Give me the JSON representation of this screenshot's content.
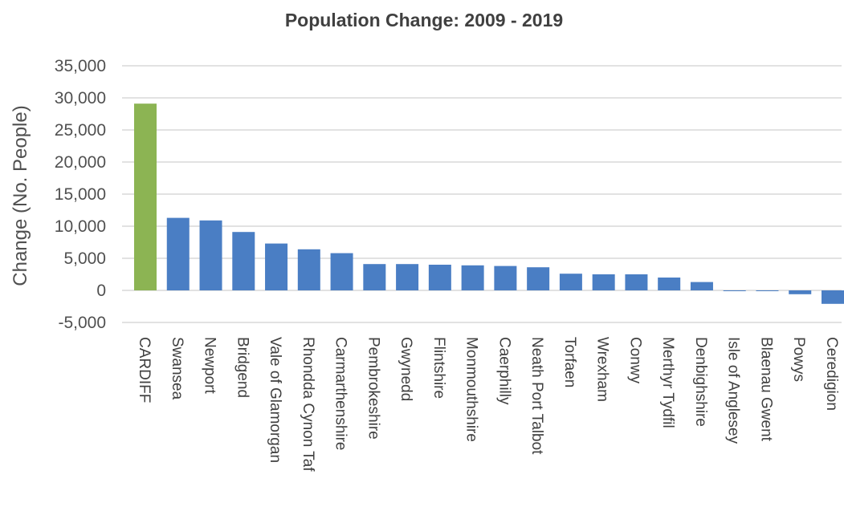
{
  "chart_data": {
    "type": "bar",
    "title": "Population Change: 2009 - 2019",
    "ylabel": "Change (No. People)",
    "xlabel": "",
    "ylim": [
      -5000,
      35000
    ],
    "yticks": [
      -5000,
      0,
      5000,
      10000,
      15000,
      20000,
      25000,
      30000,
      35000
    ],
    "ytick_labels": [
      "-5,000",
      "0",
      "5,000",
      "10,000",
      "15,000",
      "20,000",
      "25,000",
      "30,000",
      "35,000"
    ],
    "grid": true,
    "legend": "none",
    "categories": [
      "CARDIFF",
      "Swansea",
      "Newport",
      "Bridgend",
      "Vale of Glamorgan",
      "Rhondda Cynon Taf",
      "Carmarthenshire",
      "Pembrokeshire",
      "Gwynedd",
      "Flintshire",
      "Monmouthshire",
      "Caerphilly",
      "Neath Port Talbot",
      "Torfaen",
      "Wrexham",
      "Conwy",
      "Merthyr Tydfil",
      "Denbighshire",
      "Isle of Anglesey",
      "Blaenau Gwent",
      "Powys",
      "Ceredigion"
    ],
    "values": [
      29100,
      11300,
      10900,
      9100,
      7300,
      6400,
      5800,
      4100,
      4100,
      4000,
      3900,
      3800,
      3600,
      2600,
      2500,
      2500,
      2000,
      1300,
      -100,
      -100,
      -600,
      -2100
    ],
    "colors": {
      "highlight": "#8cb453",
      "default": "#4a7ec4"
    },
    "highlight_index": 0
  }
}
